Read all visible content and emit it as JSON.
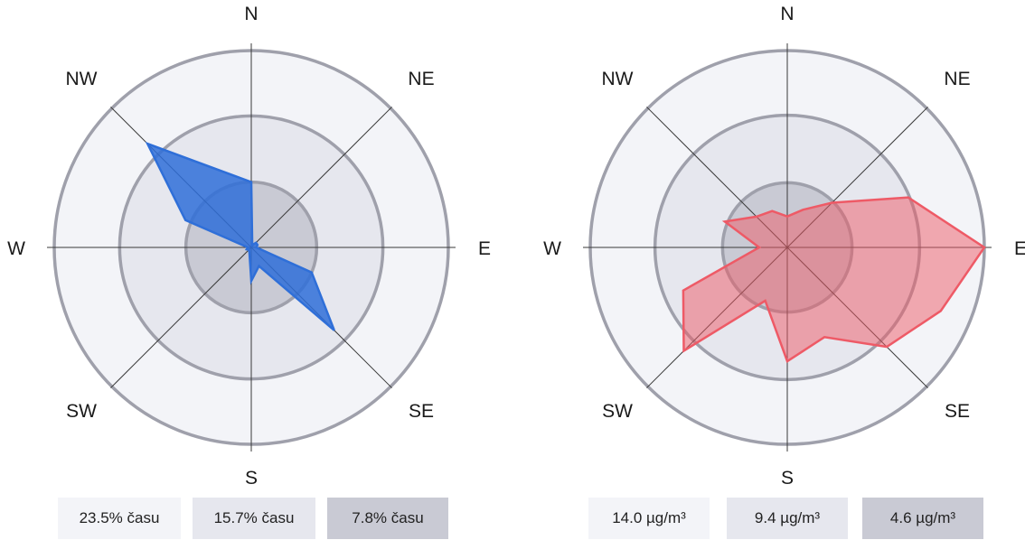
{
  "chart_data": [
    {
      "type": "radar",
      "directions": [
        "N",
        "NE",
        "E",
        "SE",
        "S",
        "SW",
        "W",
        "NW"
      ],
      "ring_values": [
        23.5,
        15.7,
        7.8
      ],
      "ring_labels": [
        "23.5% času",
        "15.7% času",
        "7.8% času"
      ],
      "angles_deg": [
        0,
        22.5,
        45,
        67.5,
        90,
        112.5,
        135,
        157.5,
        180,
        202.5,
        225,
        247.5,
        270,
        292.5,
        315
      ],
      "values": [
        7.8,
        0.3,
        0.8,
        0.8,
        0.6,
        7.8,
        14.0,
        2.4,
        4.0,
        0.6,
        0.4,
        0.6,
        0.4,
        8.5,
        17.5
      ],
      "series_color": "#2f6fd8"
    },
    {
      "type": "radar",
      "directions": [
        "N",
        "NE",
        "E",
        "SE",
        "S",
        "SW",
        "W",
        "NW"
      ],
      "ring_values": [
        14.0,
        9.4,
        4.6
      ],
      "ring_labels": [
        "14.0 µg/m³",
        "9.4 µg/m³",
        "4.6 µg/m³"
      ],
      "angles_deg": [
        0,
        22.5,
        45,
        67.5,
        90,
        112.5,
        135,
        157.5,
        180,
        202.5,
        225,
        247.5,
        270,
        292.5,
        315,
        337.5
      ],
      "values": [
        2.2,
        2.9,
        4.5,
        9.3,
        14.0,
        11.8,
        10.0,
        6.9,
        8.1,
        4.1,
        10.4,
        8.0,
        2.0,
        4.8,
        3.1,
        2.8
      ],
      "series_color": "#ee5a66"
    }
  ]
}
